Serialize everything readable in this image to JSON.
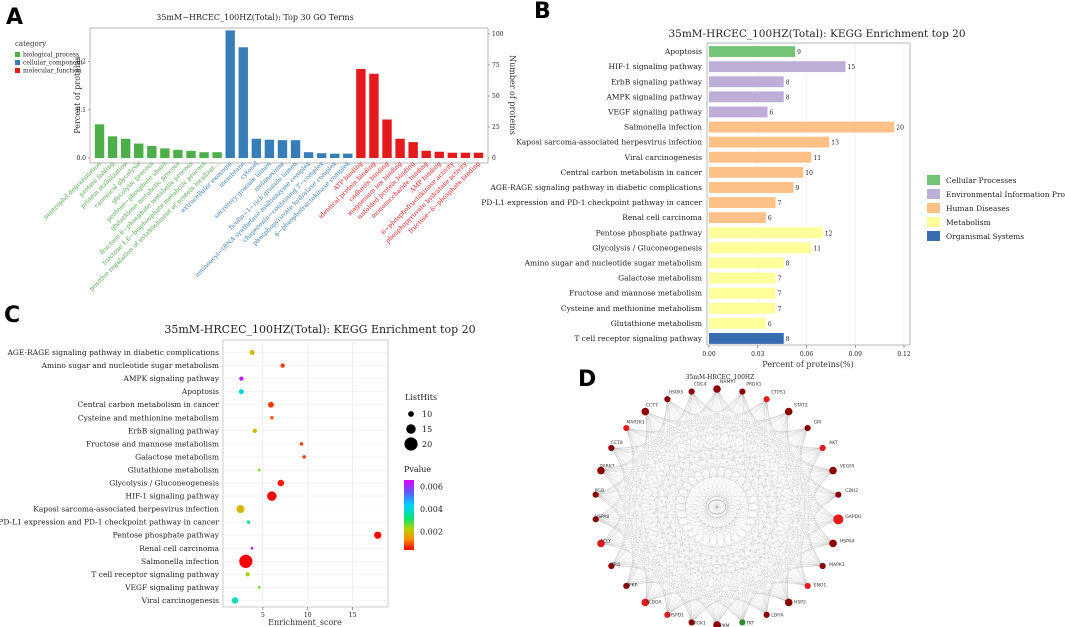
{
  "panel_labels": {
    "a": "A",
    "b": "B",
    "c": "C",
    "d": "D"
  },
  "chart_data": [
    {
      "type": "bar",
      "title": "35mM−HRCEC_100HZ(Total): Top 30 GO Terms",
      "ylabel_left": "Percent of proteins",
      "ylabel_right": "Number of proteins",
      "ylim_left": [
        0,
        0.27
      ],
      "yticks_left": [
        "0.0",
        "0.1",
        "0.2"
      ],
      "yticks_right": [
        "0",
        "25",
        "50",
        "75",
        "100"
      ],
      "legend_title": "category",
      "legend": [
        {
          "name": "biological_process",
          "color": "#4daf4a"
        },
        {
          "name": "cellular_component",
          "color": "#377eb8"
        },
        {
          "name": "molecular_function",
          "color": "#e41a1c"
        }
      ],
      "bars": [
        {
          "label": "neutrophil degranulation",
          "value": 0.07,
          "cat": 0
        },
        {
          "label": "protein folding",
          "value": 0.045,
          "cat": 0
        },
        {
          "label": "protein stabilization",
          "value": 0.04,
          "cat": 0
        },
        {
          "label": "canonical glycolysis",
          "value": 0.03,
          "cat": 0
        },
        {
          "label": "glycolytic process",
          "value": 0.025,
          "cat": 0
        },
        {
          "label": "pentose−phosphate shunt",
          "value": 0.02,
          "cat": 0
        },
        {
          "label": "glutathione metabolic process",
          "value": 0.017,
          "cat": 0
        },
        {
          "label": "fructose 6−phosphate metabolic process",
          "value": 0.015,
          "cat": 0
        },
        {
          "label": "fructose 1,6−bisphosphate metabolic process",
          "value": 0.012,
          "cat": 0
        },
        {
          "label": "positive regulation of establishment of protein localizat...",
          "value": 0.012,
          "cat": 0
        },
        {
          "label": "extracellular exosome",
          "value": 0.265,
          "cat": 1
        },
        {
          "label": "membrane",
          "value": 0.23,
          "cat": 1
        },
        {
          "label": "cytosol",
          "value": 0.04,
          "cat": 1
        },
        {
          "label": "secretory granule lumen",
          "value": 0.038,
          "cat": 1
        },
        {
          "label": "melanosome",
          "value": 0.037,
          "cat": 1
        },
        {
          "label": "ficolin−1−rich granule lumen",
          "value": 0.037,
          "cat": 1
        },
        {
          "label": "aminoacyl−tRNA synthetase multienzyme complex",
          "value": 0.012,
          "cat": 1
        },
        {
          "label": "chaperonin−containing T−complex",
          "value": 0.01,
          "cat": 1
        },
        {
          "label": "phosphopyruvate hydratase complex",
          "value": 0.009,
          "cat": 1
        },
        {
          "label": "6−phosphofructokinase complex",
          "value": 0.009,
          "cat": 1
        },
        {
          "label": "ATP binding",
          "value": 0.185,
          "cat": 2
        },
        {
          "label": "identical protein binding",
          "value": 0.175,
          "cat": 2
        },
        {
          "label": "cadherin binding",
          "value": 0.08,
          "cat": 2
        },
        {
          "label": "magnesium ion binding",
          "value": 0.04,
          "cat": 2
        },
        {
          "label": "unfolded protein binding",
          "value": 0.033,
          "cat": 2
        },
        {
          "label": "monosaccharide binding",
          "value": 0.015,
          "cat": 2
        },
        {
          "label": "AMP binding",
          "value": 0.013,
          "cat": 2
        },
        {
          "label": "6−phosphofructokinase activity",
          "value": 0.011,
          "cat": 2
        },
        {
          "label": "phosphopyruvate hydratase activity",
          "value": 0.011,
          "cat": 2
        },
        {
          "label": "fructose−6−phosphate binding",
          "value": 0.011,
          "cat": 2
        }
      ]
    },
    {
      "type": "bar",
      "orientation": "horizontal",
      "title": "35mM-HRCEC_100HZ(Total): KEGG Enrichment top 20",
      "xlabel": "Percent of proteins(%)",
      "xlim": [
        0,
        0.12
      ],
      "xticks": [
        "0.00",
        "0.03",
        "0.06",
        "0.09",
        "0.12"
      ],
      "legend": [
        {
          "name": "Cellular Processes",
          "color": "#74c476"
        },
        {
          "name": "Environmental Information Processing",
          "color": "#bcaed6"
        },
        {
          "name": "Human Diseases",
          "color": "#fdc086"
        },
        {
          "name": "Metabolism",
          "color": "#ffff99"
        },
        {
          "name": "Organismal Systems",
          "color": "#386cb0"
        }
      ],
      "bars": [
        {
          "label": "Apoptosis",
          "value": 0.053,
          "count": "9",
          "cat": 0
        },
        {
          "label": "HIF-1 signaling pathway",
          "value": 0.084,
          "count": "15",
          "cat": 1
        },
        {
          "label": "ErbB signaling pathway",
          "value": 0.046,
          "count": "8",
          "cat": 1
        },
        {
          "label": "AMPK signaling pathway",
          "value": 0.046,
          "count": "8",
          "cat": 1
        },
        {
          "label": "VEGF signaling pathway",
          "value": 0.036,
          "count": "6",
          "cat": 1
        },
        {
          "label": "Salmonella infection",
          "value": 0.114,
          "count": "20",
          "cat": 2
        },
        {
          "label": "Kaposi sarcoma-associated herpesvirus infection",
          "value": 0.074,
          "count": "13",
          "cat": 2
        },
        {
          "label": "Viral carcinogenesis",
          "value": 0.063,
          "count": "11",
          "cat": 2
        },
        {
          "label": "Central carbon metabolism in cancer",
          "value": 0.058,
          "count": "10",
          "cat": 2
        },
        {
          "label": "AGE-RAGE signaling pathway in diabetic complications",
          "value": 0.052,
          "count": "9",
          "cat": 2
        },
        {
          "label": "PD-L1 expression and PD-1 checkpoint pathway in cancer",
          "value": 0.041,
          "count": "7",
          "cat": 2
        },
        {
          "label": "Renal cell carcinoma",
          "value": 0.035,
          "count": "6",
          "cat": 2
        },
        {
          "label": "Pentose phosphate pathway",
          "value": 0.07,
          "count": "12",
          "cat": 3
        },
        {
          "label": "Glycolysis / Gluconeogenesis",
          "value": 0.063,
          "count": "11",
          "cat": 3
        },
        {
          "label": "Amino sugar and nucleotide sugar metabolism",
          "value": 0.046,
          "count": "8",
          "cat": 3
        },
        {
          "label": "Galactose metabolism",
          "value": 0.041,
          "count": "7",
          "cat": 3
        },
        {
          "label": "Fructose and mannose metabolism",
          "value": 0.041,
          "count": "7",
          "cat": 3
        },
        {
          "label": "Cysteine and methionine metabolism",
          "value": 0.041,
          "count": "7",
          "cat": 3
        },
        {
          "label": "Glutathione metabolism",
          "value": 0.035,
          "count": "6",
          "cat": 3
        },
        {
          "label": "T cell receptor signaling pathway",
          "value": 0.046,
          "count": "8",
          "cat": 4
        }
      ]
    },
    {
      "type": "scatter",
      "title": "35mM-HRCEC_100HZ(Total): KEGG Enrichment top 20",
      "xlabel": "Enrichment_score",
      "xlim": [
        1,
        18.5
      ],
      "xticks": [
        "5",
        "10",
        "15"
      ],
      "size_legend_title": "ListHits",
      "size_legend": [
        "10",
        "15",
        "20"
      ],
      "color_legend_title": "Pvalue",
      "color_ticks": [
        "0.006",
        "0.004",
        "0.002"
      ],
      "points": [
        {
          "label": "AGE-RAGE signaling pathway in diabetic complications",
          "x": 3.8,
          "hits": 9,
          "p": 0.0022
        },
        {
          "label": "Amino sugar and nucleotide sugar metabolism",
          "x": 7.2,
          "hits": 8,
          "p": 0.0008
        },
        {
          "label": "AMPK signaling pathway",
          "x": 2.6,
          "hits": 8,
          "p": 0.0062
        },
        {
          "label": "Apoptosis",
          "x": 2.6,
          "hits": 9,
          "p": 0.0042
        },
        {
          "label": "Central carbon metabolism in cancer",
          "x": 5.9,
          "hits": 10,
          "p": 0.0008
        },
        {
          "label": "Cysteine and methionine metabolism",
          "x": 6.0,
          "hits": 7,
          "p": 0.0011
        },
        {
          "label": "ErbB signaling pathway",
          "x": 4.1,
          "hits": 8,
          "p": 0.0022
        },
        {
          "label": "Fructose and mannose metabolism",
          "x": 9.3,
          "hits": 7,
          "p": 0.0009
        },
        {
          "label": "Galactose metabolism",
          "x": 9.6,
          "hits": 7,
          "p": 0.0009
        },
        {
          "label": "Glutathione metabolism",
          "x": 4.6,
          "hits": 6,
          "p": 0.0028
        },
        {
          "label": "Glycolysis / Gluconeogenesis",
          "x": 7.0,
          "hits": 11,
          "p": 0.0006
        },
        {
          "label": "HIF-1 signaling pathway",
          "x": 6.0,
          "hits": 15,
          "p": 0.0004
        },
        {
          "label": "Kaposi sarcoma-associated herpesvirus infection",
          "x": 2.5,
          "hits": 13,
          "p": 0.0021
        },
        {
          "label": "PD-L1 expression and PD-1 checkpoint pathway in cancer",
          "x": 3.4,
          "hits": 7,
          "p": 0.0036
        },
        {
          "label": "Pentose phosphate pathway",
          "x": 17.8,
          "hits": 12,
          "p": 0.0004
        },
        {
          "label": "Renal cell carcinoma",
          "x": 3.8,
          "hits": 6,
          "p": 0.006
        },
        {
          "label": "Salmonella infection",
          "x": 3.1,
          "hits": 20,
          "p": 0.0004
        },
        {
          "label": "T cell receptor signaling pathway",
          "x": 3.3,
          "hits": 8,
          "p": 0.0026
        },
        {
          "label": "VEGF signaling pathway",
          "x": 4.6,
          "hits": 6,
          "p": 0.0028
        },
        {
          "label": "Viral carcinogenesis",
          "x": 1.9,
          "hits": 11,
          "p": 0.004
        }
      ]
    },
    {
      "type": "network",
      "title": "35mM-HRCEC_100HZ",
      "nodes": [
        {
          "label": "PKM",
          "color": "#8b0000"
        },
        {
          "label": "PGK1",
          "color": "#8b0000"
        },
        {
          "label": "HSPD1",
          "color": "#e41a1c"
        },
        {
          "label": "ALDOA",
          "color": "#e41a1c"
        },
        {
          "label": "PFKP",
          "color": "#8b0000"
        },
        {
          "label": "TPI1",
          "color": "#8b0000"
        },
        {
          "label": "ACLY",
          "color": "#e41a1c"
        },
        {
          "label": "HSPA8",
          "color": "#8b0000"
        },
        {
          "label": "PGD",
          "color": "#8b0000"
        },
        {
          "label": "PARK7",
          "color": "#8b0000"
        },
        {
          "label": "CCT8",
          "color": "#8b0000"
        },
        {
          "label": "MAP2K1",
          "color": "#e41a1c"
        },
        {
          "label": "CCT7",
          "color": "#8b0000"
        },
        {
          "label": "HSPA5",
          "color": "#8b0000"
        },
        {
          "label": "CDC4",
          "color": "#8b0000"
        },
        {
          "label": "NAMPT",
          "color": "#8b0000"
        },
        {
          "label": "PRDX1",
          "color": "#8b0000"
        },
        {
          "label": "CTPS1",
          "color": "#e41a1c"
        },
        {
          "label": "STAT3",
          "color": "#8b0000"
        },
        {
          "label": "GPI",
          "color": "#8b0000"
        },
        {
          "label": "AKT",
          "color": "#e41a1c"
        },
        {
          "label": "VEGFA",
          "color": "#8b0000"
        },
        {
          "label": "CDH2",
          "color": "#8b0000"
        },
        {
          "label": "GAPDH",
          "color": "#e41a1c"
        },
        {
          "label": "HSPA4",
          "color": "#8b0000"
        },
        {
          "label": "MAPK3",
          "color": "#8b0000"
        },
        {
          "label": "ENO1",
          "color": "#e41a1c"
        },
        {
          "label": "HSP2",
          "color": "#8b0000"
        },
        {
          "label": "LDHA",
          "color": "#8b0000"
        },
        {
          "label": "TKT",
          "color": "#2e8b2e"
        }
      ]
    }
  ]
}
